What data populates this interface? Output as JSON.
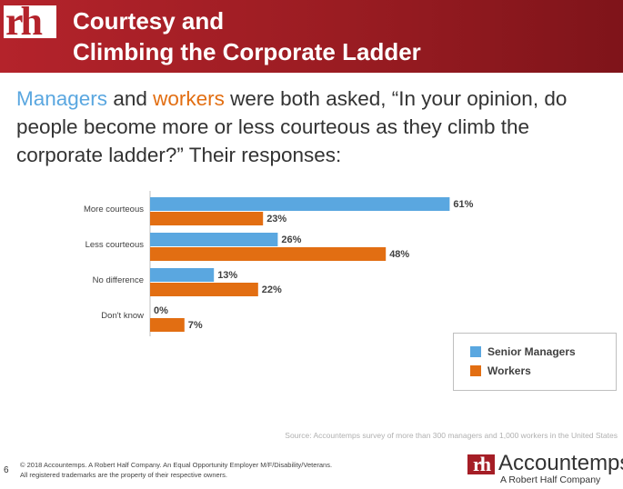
{
  "header": {
    "logo_text": "rh",
    "title_line1": "Courtesy and",
    "title_line2": "Climbing the Corporate Ladder"
  },
  "intro": {
    "part_managers": "Managers",
    "part_and": " and ",
    "part_workers": "workers",
    "part_rest": " were both asked, “In your opinion, do people become more or less courteous as they climb the corporate ladder?” Their responses:"
  },
  "chart_data": {
    "type": "bar",
    "orientation": "horizontal",
    "categories": [
      "More courteous",
      "Less courteous",
      "No difference",
      "Don't know"
    ],
    "series": [
      {
        "name": "Senior Managers",
        "values": [
          61,
          26,
          13,
          0
        ],
        "labels": [
          "61%",
          "26%",
          "13%",
          "0%"
        ],
        "color": "#5aa7e0"
      },
      {
        "name": "Workers",
        "values": [
          23,
          48,
          22,
          7
        ],
        "labels": [
          "23%",
          "48%",
          "22%",
          "7%"
        ],
        "color": "#e26e12"
      }
    ],
    "xlim": [
      0,
      100
    ],
    "unit": "%",
    "grid": false,
    "legend_position": "bottom-right"
  },
  "legend": {
    "managers_label": "Senior Managers",
    "workers_label": "Workers"
  },
  "source": "Source: Accountemps survey of more than 300 managers and 1,000 workers in the United States",
  "footer": {
    "page_number": "6",
    "line1": "© 2018 Accountemps. A Robert Half Company. An Equal Opportunity Employer M/F/Disability/Veterans.",
    "line2": "All registered trademarks are the property of their respective owners."
  },
  "brand": {
    "logo_text": "rh",
    "name": "Accountemps",
    "registered": "®",
    "subtitle": "A Robert Half Company"
  },
  "colors": {
    "header_red": "#b4232b",
    "managers_blue": "#5aa7e0",
    "workers_orange": "#e26e12"
  }
}
